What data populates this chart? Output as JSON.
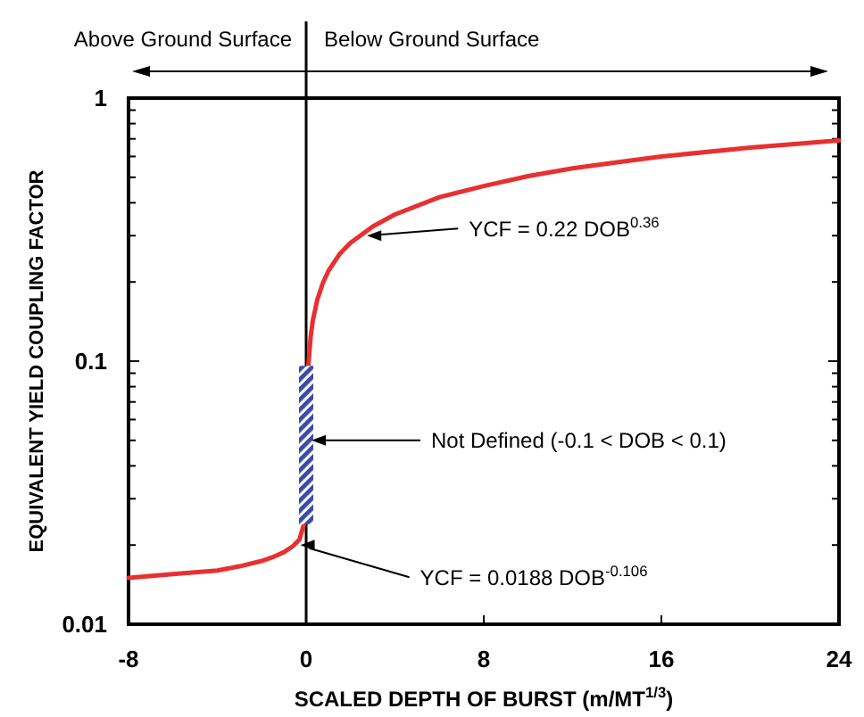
{
  "chart_data": {
    "type": "line",
    "xlabel": "SCALED DEPTH OF BURST (m/MT$^{1/3}$)",
    "ylabel": "EQUIVALENT YIELD COUPLING FACTOR",
    "xlim": [
      -8,
      24
    ],
    "xticks": [
      -8,
      0,
      8,
      16,
      24
    ],
    "ylim": [
      0.01,
      1
    ],
    "yticks": [
      0.01,
      {
        "value": 0.02,
        "label": null
      },
      {
        "value": 0.03,
        "label": null
      },
      {
        "value": 0.04,
        "label": null
      },
      {
        "value": 0.05,
        "label": null
      },
      {
        "value": 0.06,
        "label": null
      },
      {
        "value": 0.07,
        "label": null
      },
      {
        "value": 0.08,
        "label": null
      },
      {
        "value": 0.09,
        "label": null
      },
      0.1,
      {
        "value": 0.2,
        "label": null
      },
      {
        "value": 0.3,
        "label": null
      },
      {
        "value": 0.4,
        "label": null
      },
      {
        "value": 0.5,
        "label": null
      },
      {
        "value": 0.6,
        "label": null
      },
      {
        "value": 0.7,
        "label": null
      },
      {
        "value": 0.8,
        "label": null
      },
      {
        "value": 0.9,
        "label": null
      },
      1
    ],
    "log": "y",
    "grid": false,
    "marker": "none",
    "line_style": "solid",
    "series": [
      {
        "color": "#e83030",
        "x": [
          -8,
          -6,
          -4,
          -3,
          -2,
          -1.5,
          -1,
          -0.6,
          -0.3,
          -0.1
        ],
        "values": [
          0.015,
          0.0155,
          0.016,
          0.0166,
          0.0174,
          0.018,
          0.0188,
          0.0198,
          0.021,
          0.024
        ]
      },
      {
        "color": "#e83030",
        "x": [
          0.1,
          0.2,
          0.3,
          0.5,
          0.75,
          1,
          1.5,
          2,
          3,
          4,
          6,
          8,
          10,
          12,
          14,
          16,
          20,
          24
        ],
        "values": [
          0.096,
          0.123,
          0.143,
          0.171,
          0.198,
          0.22,
          0.255,
          0.282,
          0.325,
          0.361,
          0.42,
          0.463,
          0.505,
          0.541,
          0.57,
          0.6,
          0.648,
          0.69
        ]
      }
    ],
    "ref_lines": [
      {
        "axis": "x",
        "value": 0,
        "color": "#000000"
      }
    ],
    "annotations": [
      "Above Ground Surface",
      "Below Ground Surface",
      {
        "text": "YCF = 0.22 DOB$^{0.36}$",
        "x": 2.5,
        "y": 0.3
      },
      {
        "text": "Not Defined (-0.1 < DOB < 0.1)",
        "x": 0,
        "y": 0.05
      },
      {
        "text": "YCF = 0.0188 DOB$^{-0.106}$",
        "x": -0.5,
        "y": 0.02
      }
    ]
  }
}
